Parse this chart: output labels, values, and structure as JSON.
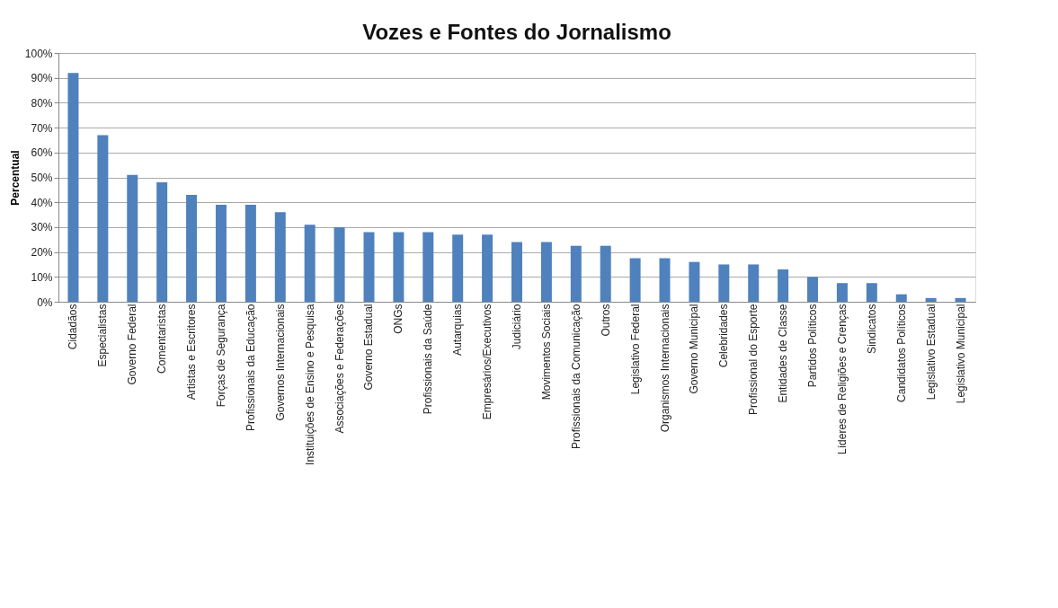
{
  "chart_data": {
    "type": "bar",
    "title": "Vozes e Fontes do Jornalismo",
    "ylabel": "Percentual",
    "categories": [
      "Cidadãos",
      "Especialistas",
      "Governo Federal",
      "Comentaristas",
      "Artistas e Escritores",
      "Forças de Segurança",
      "Profissionais da Educação",
      "Governos Internacionais",
      "Instituições de Ensino e Pesquisa",
      "Associações e Federações",
      "Governo Estadual",
      "ONGs",
      "Profissionais da Saúde",
      "Autarquias",
      "Empresários/Executivos",
      "Judiciário",
      "Movimentos Sociais",
      "Profissionais da Comunicação",
      "Outros",
      "Legislativo Federal",
      "Organismos Internacionais",
      "Governo Municipal",
      "Celebridades",
      "Profissional do Esporte",
      "Entidades de Classe",
      "Partidos Políticos",
      "Líderes de Religiões e Crenças",
      "Sindicatos",
      "Candidatos Políticos",
      "Legislativo Estadual",
      "Legislativo Municipal"
    ],
    "values": [
      92,
      67,
      51,
      48,
      43,
      39,
      39,
      36,
      31,
      30,
      28,
      28,
      28,
      27,
      27,
      24,
      24,
      22.5,
      22.5,
      17.5,
      17.5,
      16,
      15,
      15,
      13,
      10,
      7.5,
      7.5,
      3,
      1.5,
      1.5
    ],
    "color": "#4f81bd",
    "ylim": [
      0,
      100
    ],
    "yticks": [
      {
        "value": 0,
        "label": "0%"
      },
      {
        "value": 10,
        "label": "10%"
      },
      {
        "value": 20,
        "label": "20%"
      },
      {
        "value": 30,
        "label": "30%"
      },
      {
        "value": 40,
        "label": "40%"
      },
      {
        "value": 50,
        "label": "50%"
      },
      {
        "value": 60,
        "label": "60%"
      },
      {
        "value": 70,
        "label": "70%"
      },
      {
        "value": 80,
        "label": "80%"
      },
      {
        "value": 90,
        "label": "90%"
      },
      {
        "value": 100,
        "label": "100%"
      }
    ],
    "grid": "y"
  }
}
